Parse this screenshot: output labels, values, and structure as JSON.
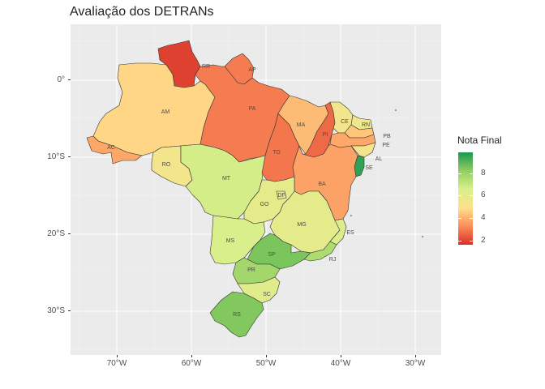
{
  "title": "Avaliação dos DETRANs",
  "axes": {
    "y_ticks": [
      "0°",
      "10°S",
      "20°S",
      "30°S"
    ],
    "x_ticks": [
      "70°W",
      "60°W",
      "50°W",
      "40°W",
      "30°W"
    ]
  },
  "legend": {
    "title": "Nota Final",
    "labels": [
      "8",
      "6",
      "4",
      "2"
    ],
    "scale": "RdYlGn",
    "range": [
      1.5,
      9.5
    ],
    "colors": [
      "#d73027",
      "#fc8d59",
      "#fee08b",
      "#d9ef8b",
      "#91cf60",
      "#1a9850"
    ]
  },
  "chart_data": {
    "type": "choropleth",
    "title": "Avaliação dos DETRANs",
    "legend_title": "Nota Final",
    "states": [
      {
        "code": "RR",
        "value": 1.8
      },
      {
        "code": "AP",
        "value": 2.8
      },
      {
        "code": "AM",
        "value": 4.5
      },
      {
        "code": "PA",
        "value": 2.8
      },
      {
        "code": "AC",
        "value": 3.6
      },
      {
        "code": "RO",
        "value": 5.2
      },
      {
        "code": "MT",
        "value": 6.4
      },
      {
        "code": "TO",
        "value": 2.7
      },
      {
        "code": "MA",
        "value": 4.0
      },
      {
        "code": "PI",
        "value": 2.5
      },
      {
        "code": "CE",
        "value": 5.2
      },
      {
        "code": "RN",
        "value": 5.5
      },
      {
        "code": "PB",
        "value": 4.2
      },
      {
        "code": "PE",
        "value": 3.6
      },
      {
        "code": "AL",
        "value": 5.0
      },
      {
        "code": "SE",
        "value": 9.2
      },
      {
        "code": "BA",
        "value": 3.5
      },
      {
        "code": "GO",
        "value": 5.8
      },
      {
        "code": "DF",
        "value": 5.8
      },
      {
        "code": "MG",
        "value": 5.8
      },
      {
        "code": "ES",
        "value": 6.2
      },
      {
        "code": "MS",
        "value": 6.3
      },
      {
        "code": "SP",
        "value": 8.2
      },
      {
        "code": "RJ",
        "value": 7.3
      },
      {
        "code": "PR",
        "value": 7.5
      },
      {
        "code": "SC",
        "value": 6.0
      },
      {
        "code": "RS",
        "value": 8.1
      }
    ]
  }
}
